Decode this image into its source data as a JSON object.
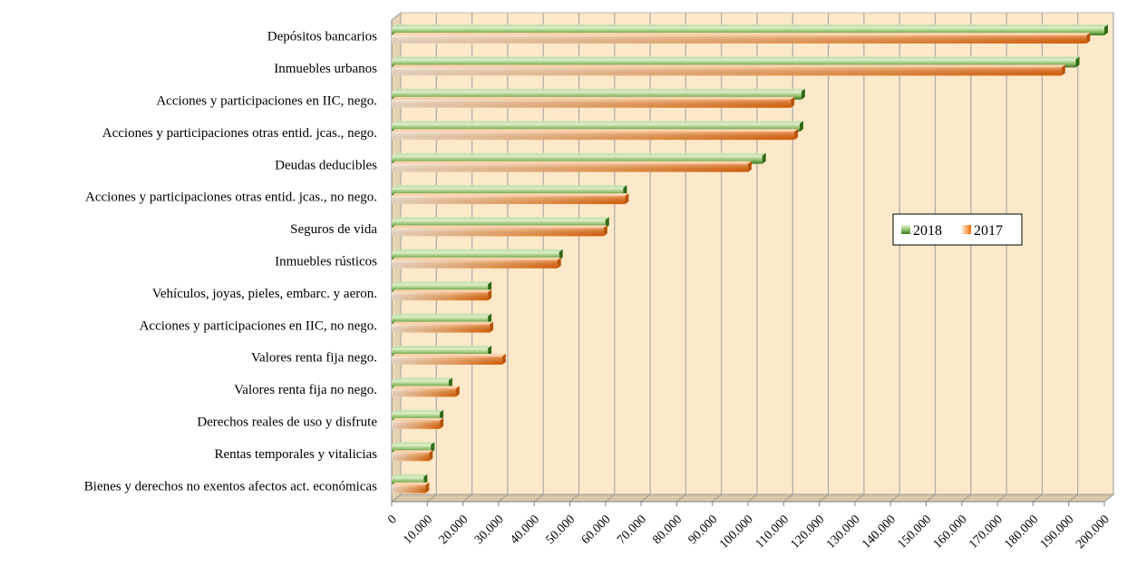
{
  "chart_data": {
    "type": "bar",
    "orientation": "horizontal",
    "title": "",
    "xlabel": "",
    "ylabel": "",
    "xlim": [
      0,
      200000
    ],
    "grid": true,
    "legend": "center-right",
    "categories": [
      "Depósitos bancarios",
      "Inmuebles urbanos",
      "Acciones y participaciones en IIC, nego.",
      "Acciones y participaciones otras entid. jcas., nego.",
      "Deudas deducibles",
      "Acciones y participaciones otras entid. jcas., no nego.",
      "Seguros de vida",
      "Inmuebles rústicos",
      "Vehículos, joyas, pieles, embarc. y aeron.",
      "Acciones y participaciones en IIC, no  nego.",
      "Valores renta fija nego.",
      "Valores renta fija no nego.",
      "Derechos reales de uso y disfrute",
      "Rentas temporales y vitalicias",
      "Bienes y derechos no exentos afectos act. económicas"
    ],
    "series": [
      {
        "name": "2018",
        "color": "#5a9a3a",
        "values": [
          200000,
          192000,
          115000,
          114500,
          104000,
          65000,
          60000,
          47000,
          27000,
          27000,
          27000,
          16000,
          13500,
          11000,
          9000
        ]
      },
      {
        "name": "2017",
        "color": "#f07e20",
        "values": [
          195000,
          188000,
          112000,
          113000,
          100000,
          65500,
          59500,
          46500,
          27000,
          27500,
          31000,
          18000,
          13500,
          10500,
          9500
        ]
      }
    ],
    "x_ticks": [
      "0",
      "10.000",
      "20.000",
      "30.000",
      "40.000",
      "50.000",
      "60.000",
      "70.000",
      "80.000",
      "90.000",
      "100.000",
      "110.000",
      "120.000",
      "130.000",
      "140.000",
      "150.000",
      "160.000",
      "170.000",
      "180.000",
      "190.000",
      "200.000"
    ],
    "colors": {
      "plot_bg": "#fde9c9",
      "gridline": "#a8a8a8",
      "green_dark": "#4f8a2f",
      "green_light": "#e4f2d4",
      "orange_dark": "#e86f10",
      "orange_light": "#fde4cb"
    }
  }
}
